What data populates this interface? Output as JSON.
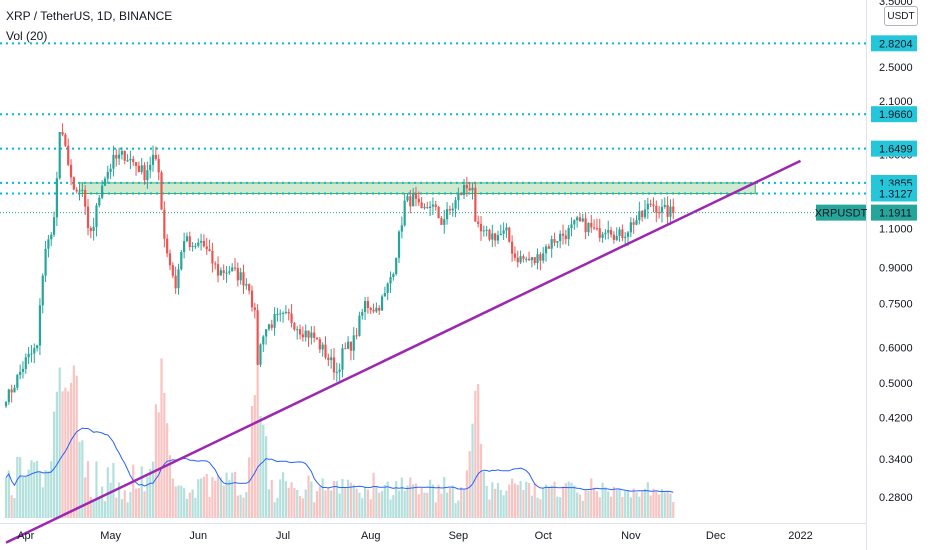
{
  "legend": {
    "title": "XRP / TetherUS, 1D, BINANCE",
    "volume_label": "Vol (20)"
  },
  "currency": "USDT",
  "colors": {
    "up": "#26a69a",
    "down": "#ef5350",
    "level_line": "#00bcd4",
    "trendline": "#9c27b0",
    "zone_fill": "#c8e6c9",
    "zone_stroke": "#4caf50",
    "volume_ma": "#2962ff",
    "symbol_badge": "#26a69a",
    "level_badge": "#26c6da"
  },
  "chart_data": {
    "type": "candlestick",
    "symbol": "XRPUSDT",
    "scale": "log",
    "ylim": [
      0.25,
      3.5
    ],
    "price_ticks": [
      "3.5000",
      "2.5000",
      "2.1000",
      "1.6000",
      "1.3500",
      "1.1000",
      "0.9000",
      "0.7500",
      "0.6000",
      "0.5000",
      "0.4200",
      "0.3400",
      "0.2800"
    ],
    "time_ticks": [
      "Apr",
      "May",
      "Jun",
      "Jul",
      "Aug",
      "Sep",
      "Oct",
      "Nov",
      "Dec",
      "2022"
    ],
    "last_price": "1.1911",
    "levels": [
      "2.8204",
      "1.9660",
      "1.6499",
      "1.3855",
      "1.3127"
    ],
    "resistance_zone": [
      1.3127,
      1.3855
    ],
    "trendline": {
      "from": [
        "Mar 25",
        0.222
      ],
      "to": [
        "Dec 31",
        1.55
      ]
    },
    "anchors": [
      [
        "Mar 26",
        0.47
      ],
      [
        "Apr 1",
        0.56
      ],
      [
        "Apr 5",
        0.6
      ],
      [
        "Apr 7",
        0.88
      ],
      [
        "Apr 8",
        1.0
      ],
      [
        "Apr 10",
        1.05
      ],
      [
        "Apr 11",
        1.2
      ],
      [
        "Apr 12",
        1.4
      ],
      [
        "Apr 13",
        1.8
      ],
      [
        "Apr 14",
        1.72
      ],
      [
        "Apr 16",
        1.56
      ],
      [
        "Apr 18",
        1.3
      ],
      [
        "Apr 21",
        1.33
      ],
      [
        "Apr 23",
        1.07
      ],
      [
        "Apr 25",
        1.12
      ],
      [
        "Apr 28",
        1.4
      ],
      [
        "May 2",
        1.55
      ],
      [
        "May 6",
        1.6
      ],
      [
        "May 10",
        1.52
      ],
      [
        "May 13",
        1.45
      ],
      [
        "May 16",
        1.58
      ],
      [
        "May 18",
        1.46
      ],
      [
        "May 20",
        1.05
      ],
      [
        "May 22",
        0.92
      ],
      [
        "May 24",
        0.82
      ],
      [
        "May 27",
        1.05
      ],
      [
        "May 30",
        0.98
      ],
      [
        "Jun 2",
        1.03
      ],
      [
        "Jun 5",
        0.95
      ],
      [
        "Jun 8",
        0.88
      ],
      [
        "Jun 12",
        0.89
      ],
      [
        "Jun 16",
        0.86
      ],
      [
        "Jun 19",
        0.82
      ],
      [
        "Jun 21",
        0.7
      ],
      [
        "Jun 22",
        0.56
      ],
      [
        "Jun 24",
        0.65
      ],
      [
        "Jun 28",
        0.69
      ],
      [
        "Jul 3",
        0.7
      ],
      [
        "Jul 7",
        0.66
      ],
      [
        "Jul 12",
        0.63
      ],
      [
        "Jul 16",
        0.58
      ],
      [
        "Jul 20",
        0.53
      ],
      [
        "Jul 22",
        0.58
      ],
      [
        "Jul 26",
        0.62
      ],
      [
        "Jul 30",
        0.75
      ],
      [
        "Aug 3",
        0.73
      ],
      [
        "Aug 6",
        0.78
      ],
      [
        "Aug 9",
        0.9
      ],
      [
        "Aug 11",
        1.05
      ],
      [
        "Aug 13",
        1.25
      ],
      [
        "Aug 16",
        1.28
      ],
      [
        "Aug 19",
        1.18
      ],
      [
        "Aug 22",
        1.25
      ],
      [
        "Aug 26",
        1.14
      ],
      [
        "Aug 29",
        1.2
      ],
      [
        "Sep 3",
        1.35
      ],
      [
        "Sep 6",
        1.37
      ],
      [
        "Sep 7",
        1.1
      ],
      [
        "Sep 10",
        1.06
      ],
      [
        "Sep 14",
        1.06
      ],
      [
        "Sep 18",
        1.07
      ],
      [
        "Sep 21",
        0.95
      ],
      [
        "Sep 24",
        0.94
      ],
      [
        "Sep 28",
        0.93
      ],
      [
        "Oct 2",
        1.0
      ],
      [
        "Oct 6",
        1.05
      ],
      [
        "Oct 10",
        1.08
      ],
      [
        "Oct 13",
        1.13
      ],
      [
        "Oct 17",
        1.11
      ],
      [
        "Oct 20",
        1.07
      ],
      [
        "Oct 24",
        1.12
      ],
      [
        "Oct 27",
        1.05
      ],
      [
        "Oct 30",
        1.08
      ],
      [
        "Nov 2",
        1.14
      ],
      [
        "Nov 5",
        1.17
      ],
      [
        "Nov 8",
        1.25
      ],
      [
        "Nov 10",
        1.23
      ],
      [
        "Nov 12",
        1.2
      ],
      [
        "Nov 16",
        1.19
      ]
    ],
    "volume_spikes": [
      "Apr 13",
      "Apr 18",
      "May 19",
      "Sep 7",
      "Jun 22"
    ]
  }
}
